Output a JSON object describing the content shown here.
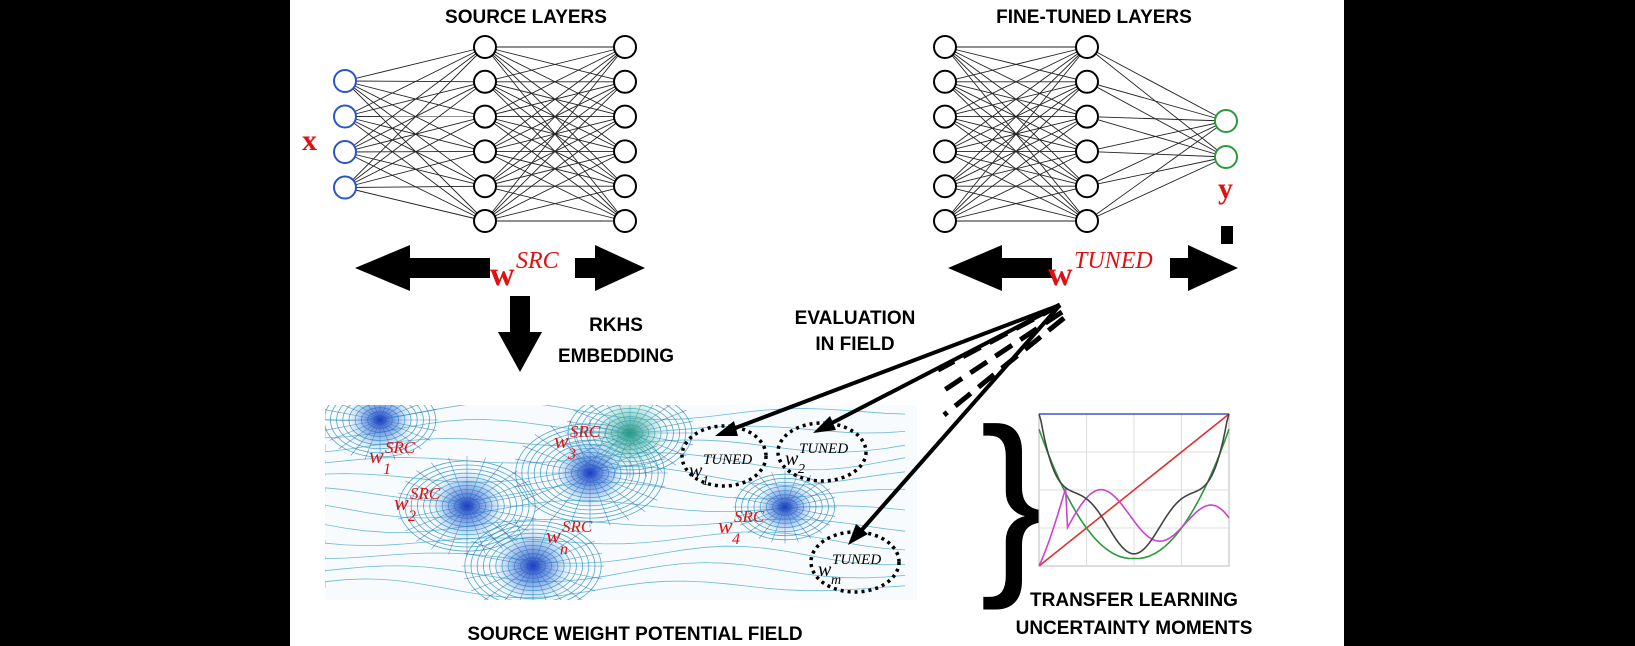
{
  "labels": {
    "source_layers": "SOURCE  LAYERS",
    "fine_tuned_layers": "FINE-TUNED  LAYERS",
    "input": "x",
    "output": "y",
    "rkhs_line1": "RKHS",
    "rkhs_line2": "EMBEDDING",
    "eval_line1": "EVALUATION",
    "eval_line2": "IN FIELD",
    "field_title": "SOURCE  WEIGHT  POTENTIAL  FIELD",
    "moments_line1": "TRANSFER LEARNING",
    "moments_line2": "UNCERTAINTY  MOMENTS"
  },
  "weights": {
    "w_base": "w",
    "src": "SRC",
    "tuned": "TUNED"
  },
  "source_weights": [
    {
      "sub": "1",
      "sup": "SRC"
    },
    {
      "sub": "3",
      "sup": "SRC"
    },
    {
      "sub": "2",
      "sup": "SRC"
    },
    {
      "sub": "4",
      "sup": "SRC"
    },
    {
      "sub": "n",
      "sup": "SRC"
    }
  ],
  "tuned_weights": [
    {
      "sub": "1",
      "sup": "TUNED"
    },
    {
      "sub": "2",
      "sup": "TUNED"
    },
    {
      "sub": "m",
      "sup": "TUNED"
    }
  ],
  "colors": {
    "input_nodes": "#2a55c8",
    "output_nodes": "#2a9a3a",
    "weight_text": "#e01010",
    "field_lines": "#2f9cc0",
    "field_dense": "#1e3fa8"
  }
}
